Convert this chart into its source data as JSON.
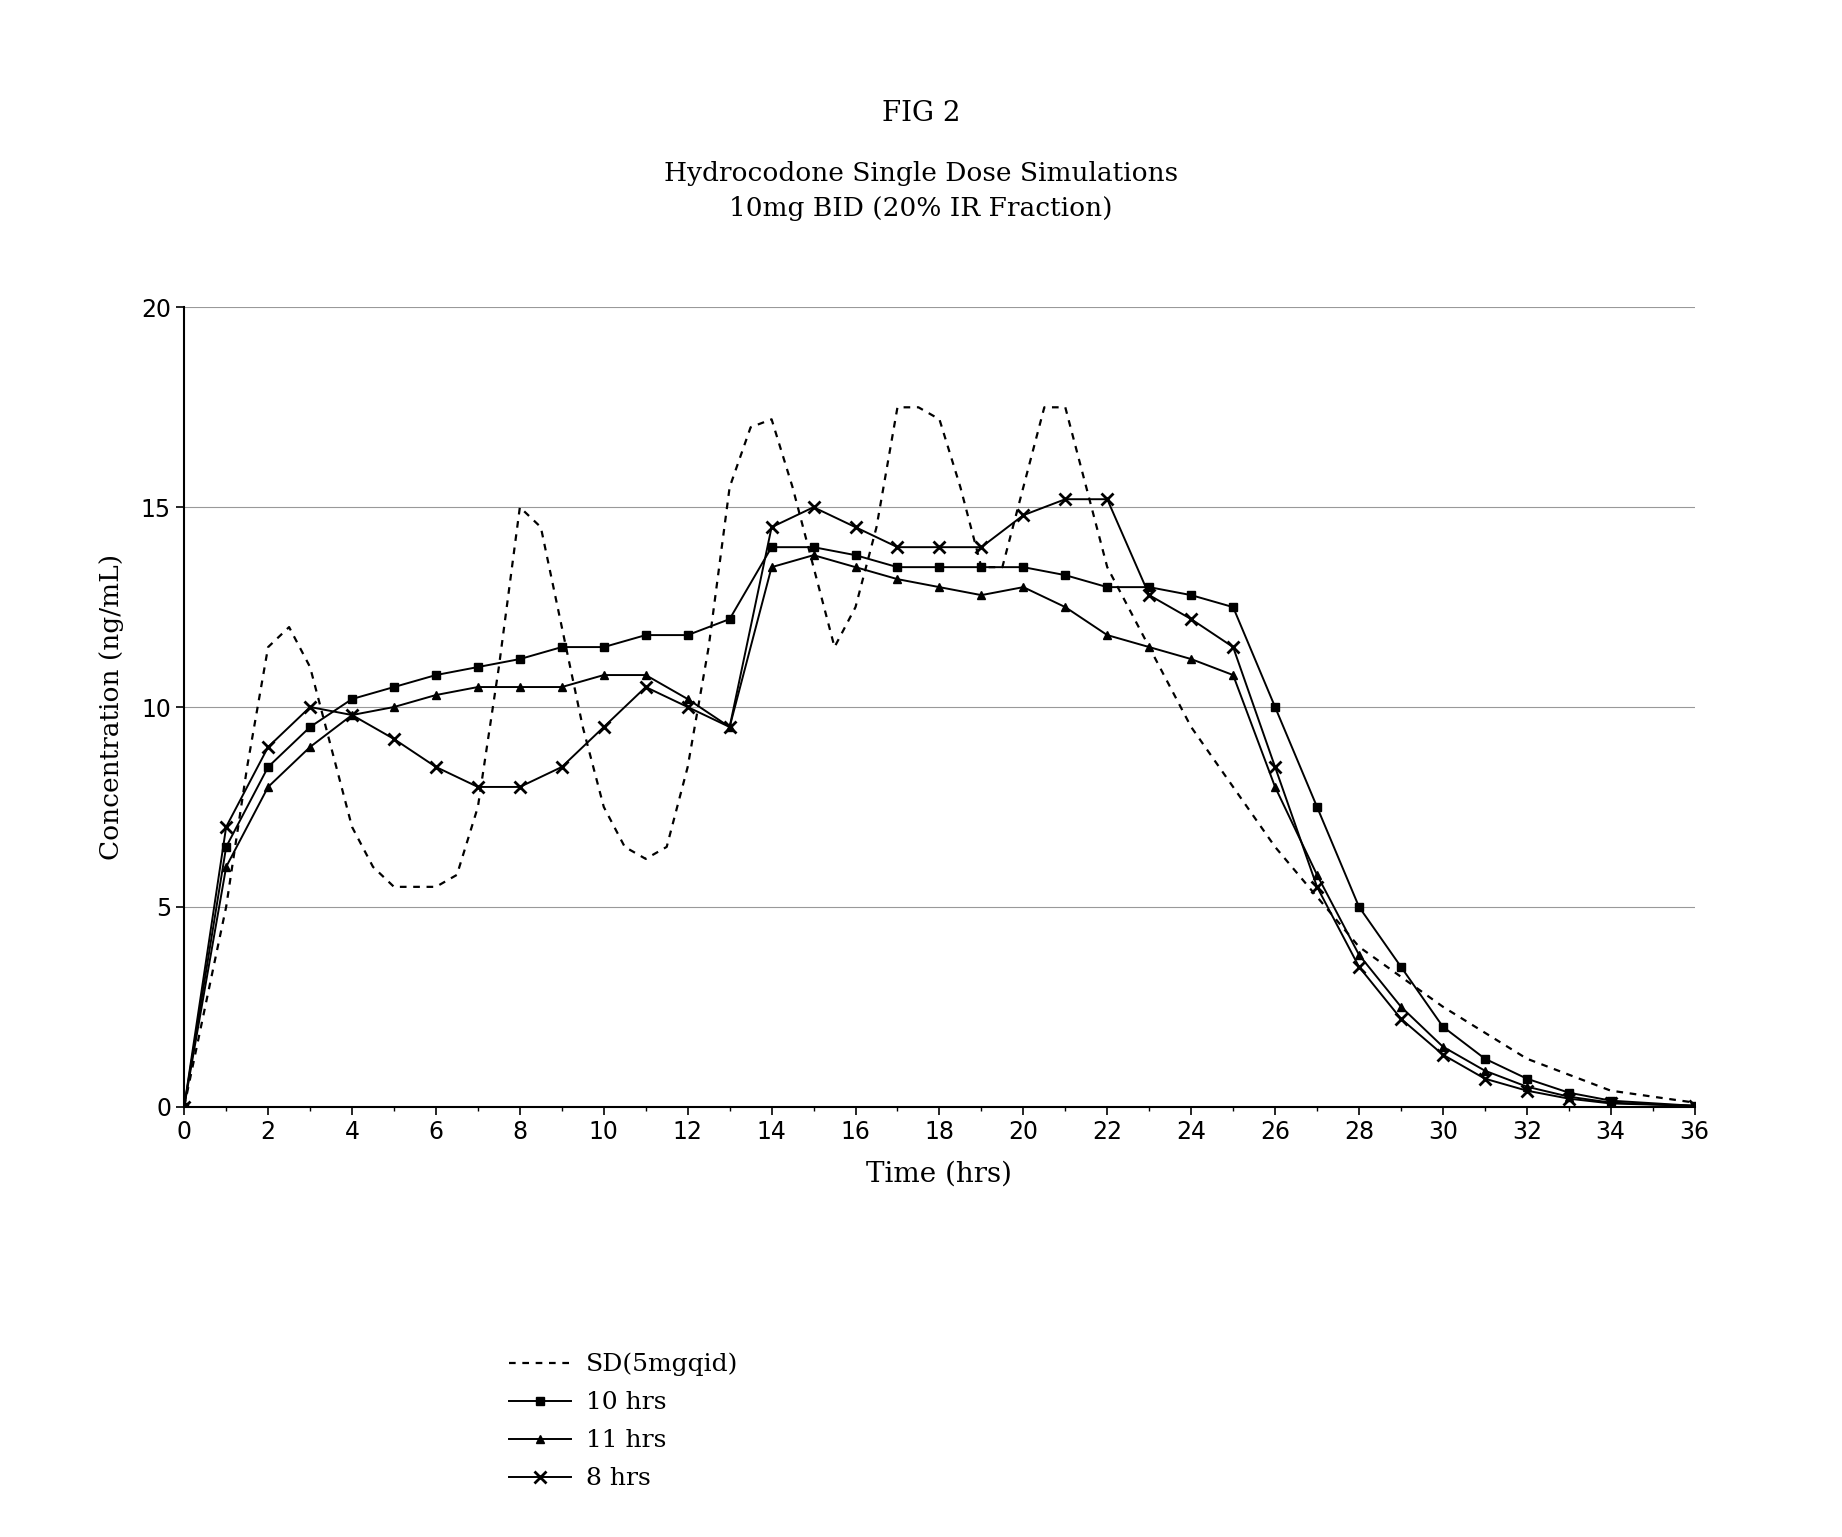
{
  "title_fig": "FIG 2",
  "title_main": "Hydrocodone Single Dose Simulations\n10mg BID (20% IR Fraction)",
  "xlabel": "Time (hrs)",
  "ylabel": "Concentration (ng/mL)",
  "xlim": [
    0,
    36
  ],
  "ylim": [
    0,
    20
  ],
  "xticks": [
    0,
    2,
    4,
    6,
    8,
    10,
    12,
    14,
    16,
    18,
    20,
    22,
    24,
    26,
    28,
    30,
    32,
    34,
    36
  ],
  "yticks": [
    0,
    5,
    10,
    15,
    20
  ],
  "sd_x": [
    0,
    0.5,
    1.0,
    1.5,
    2.0,
    2.5,
    3.0,
    3.5,
    4.0,
    4.5,
    5.0,
    5.5,
    6.0,
    6.5,
    7.0,
    7.5,
    8.0,
    8.5,
    9.0,
    9.5,
    10.0,
    10.5,
    11.0,
    11.5,
    12.0,
    12.5,
    13.0,
    13.5,
    14.0,
    14.5,
    15.0,
    15.5,
    16.0,
    16.5,
    17.0,
    17.5,
    18.0,
    18.5,
    19.0,
    19.5,
    20.0,
    20.5,
    21.0,
    21.5,
    22.0,
    23.0,
    24.0,
    25.0,
    26.0,
    28.0,
    30.0,
    32.0,
    34.0,
    36.0
  ],
  "sd_y": [
    0,
    2.5,
    5.0,
    8.5,
    11.5,
    12.0,
    11.0,
    9.0,
    7.0,
    6.0,
    5.5,
    5.5,
    5.5,
    5.8,
    7.5,
    11.0,
    15.0,
    14.5,
    12.0,
    9.5,
    7.5,
    6.5,
    6.2,
    6.5,
    8.5,
    11.5,
    15.5,
    17.0,
    17.2,
    15.5,
    13.5,
    11.5,
    12.5,
    14.5,
    17.5,
    17.5,
    17.2,
    15.5,
    13.5,
    13.5,
    15.5,
    17.5,
    17.5,
    15.5,
    13.5,
    11.5,
    9.5,
    8.0,
    6.5,
    4.0,
    2.5,
    1.2,
    0.4,
    0.1
  ],
  "hrs10_x": [
    0,
    1,
    2,
    3,
    4,
    5,
    6,
    7,
    8,
    9,
    10,
    11,
    12,
    13,
    14,
    15,
    16,
    17,
    18,
    19,
    20,
    21,
    22,
    23,
    24,
    25,
    26,
    27,
    28,
    29,
    30,
    31,
    32,
    33,
    34,
    36
  ],
  "hrs10_y": [
    0,
    6.5,
    8.5,
    9.5,
    10.2,
    10.5,
    10.8,
    11.0,
    11.2,
    11.5,
    11.5,
    11.8,
    11.8,
    12.2,
    14.0,
    14.0,
    13.8,
    13.5,
    13.5,
    13.5,
    13.5,
    13.3,
    13.0,
    13.0,
    12.8,
    12.5,
    10.0,
    7.5,
    5.0,
    3.5,
    2.0,
    1.2,
    0.7,
    0.35,
    0.15,
    0.02
  ],
  "hrs11_x": [
    0,
    1,
    2,
    3,
    4,
    5,
    6,
    7,
    8,
    9,
    10,
    11,
    12,
    13,
    14,
    15,
    16,
    17,
    18,
    19,
    20,
    21,
    22,
    23,
    24,
    25,
    26,
    27,
    28,
    29,
    30,
    31,
    32,
    33,
    34,
    36
  ],
  "hrs11_y": [
    0,
    6.0,
    8.0,
    9.0,
    9.8,
    10.0,
    10.3,
    10.5,
    10.5,
    10.5,
    10.8,
    10.8,
    10.2,
    9.5,
    13.5,
    13.8,
    13.5,
    13.2,
    13.0,
    12.8,
    13.0,
    12.5,
    11.8,
    11.5,
    11.2,
    10.8,
    8.0,
    5.8,
    3.8,
    2.5,
    1.5,
    0.9,
    0.5,
    0.25,
    0.1,
    0.02
  ],
  "hrs8_x": [
    0,
    1,
    2,
    3,
    4,
    5,
    6,
    7,
    8,
    9,
    10,
    11,
    12,
    13,
    14,
    15,
    16,
    17,
    18,
    19,
    20,
    21,
    22,
    23,
    24,
    25,
    26,
    27,
    28,
    29,
    30,
    31,
    32,
    33,
    34,
    36
  ],
  "hrs8_y": [
    0,
    7.0,
    9.0,
    10.0,
    9.8,
    9.2,
    8.5,
    8.0,
    8.0,
    8.5,
    9.5,
    10.5,
    10.0,
    9.5,
    14.5,
    15.0,
    14.5,
    14.0,
    14.0,
    14.0,
    14.8,
    15.2,
    15.2,
    12.8,
    12.2,
    11.5,
    8.5,
    5.5,
    3.5,
    2.2,
    1.3,
    0.7,
    0.4,
    0.2,
    0.08,
    0.02
  ],
  "legend_labels": [
    "SD(5mgqid)",
    "10 hrs",
    "11 hrs",
    "8 hrs"
  ],
  "background_color": "#ffffff",
  "line_color": "#000000"
}
